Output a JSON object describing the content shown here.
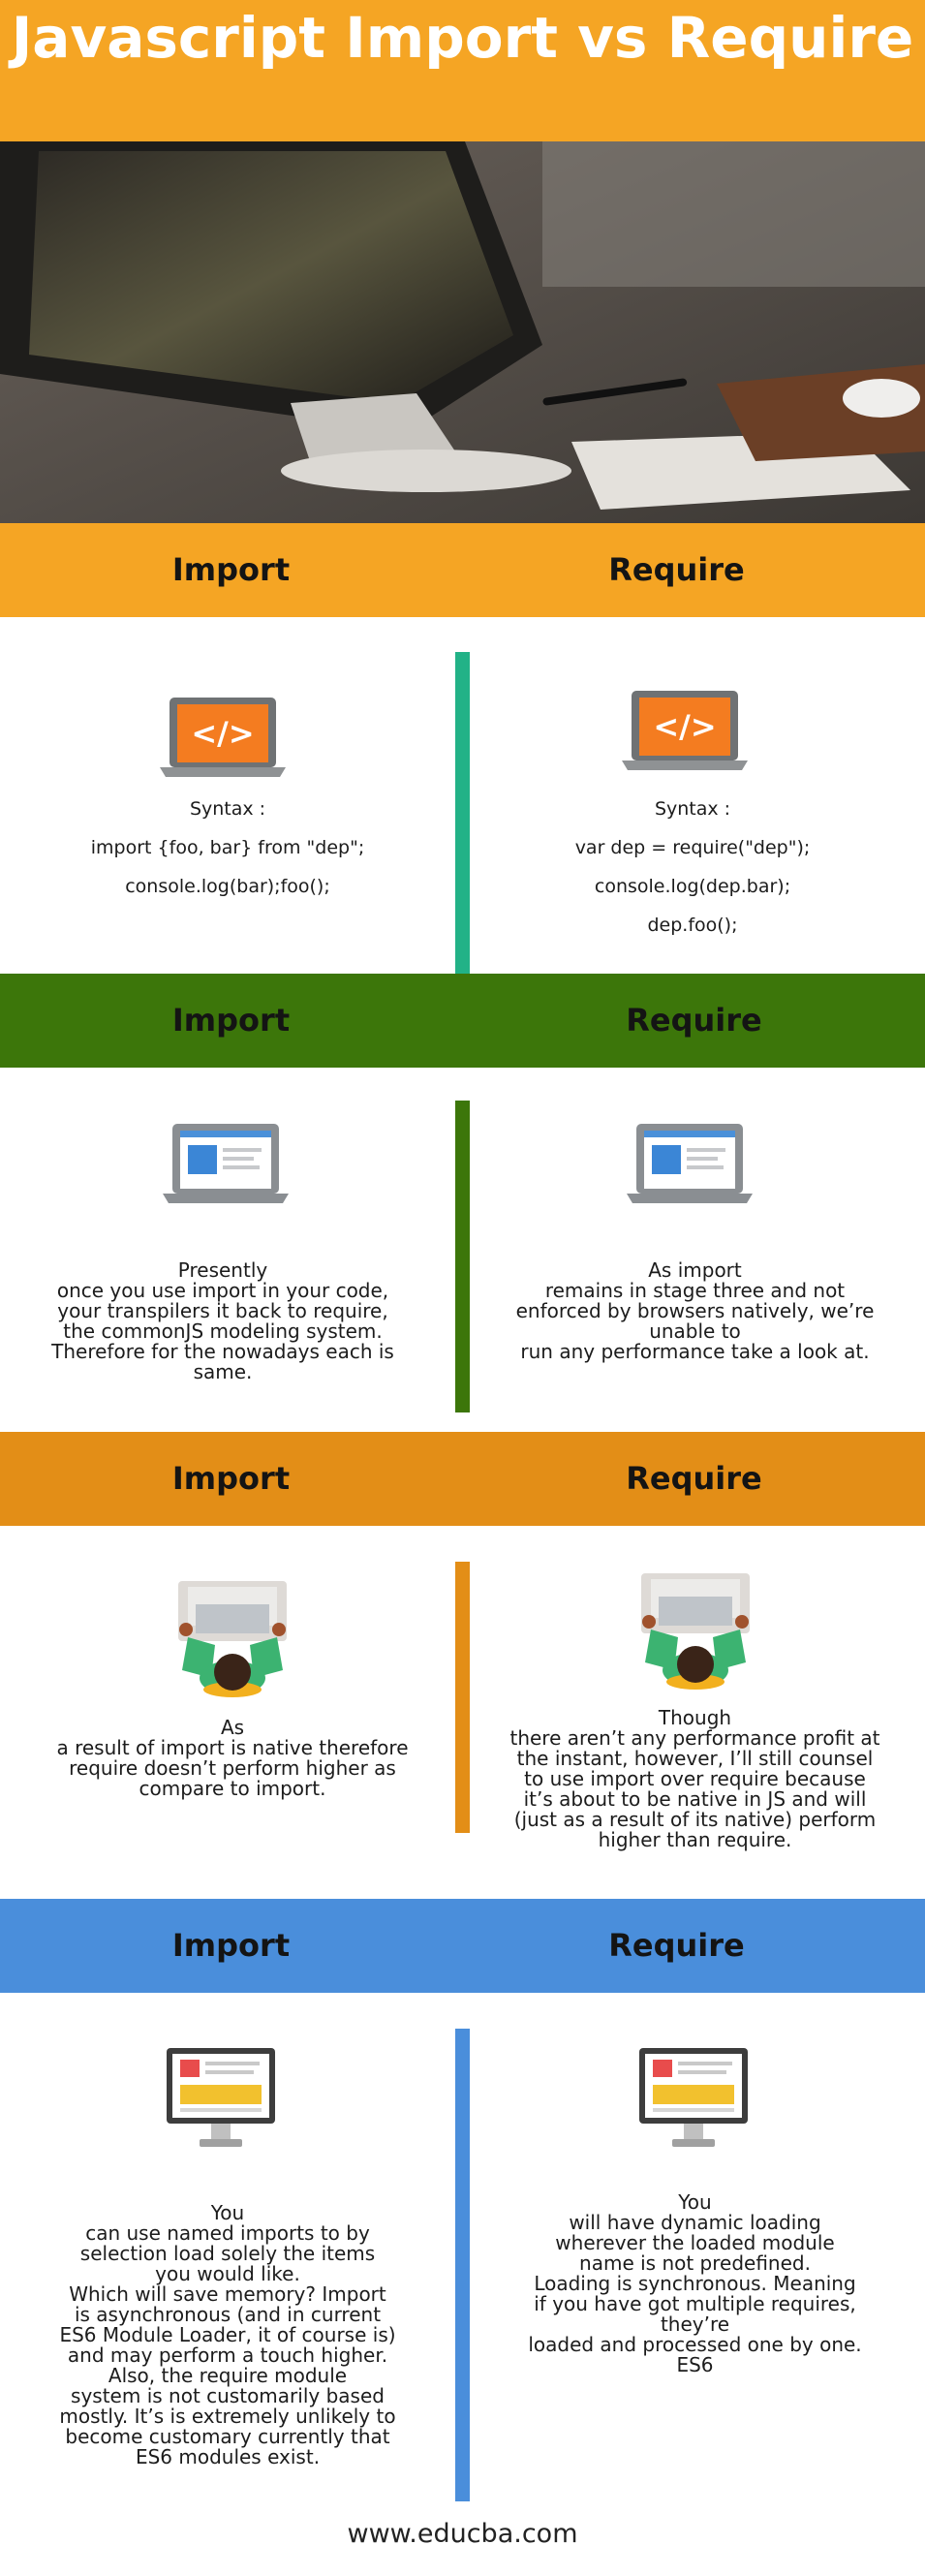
{
  "title": "Javascript Import vs Require",
  "footer": "www.educba.com",
  "colors": {
    "title_band": "#f5a524",
    "section1": "#f5a524",
    "section2": "#3c760a",
    "section3": "#e38e17",
    "section4": "#4a8edb",
    "divider1": "#22b287"
  },
  "sections": [
    {
      "left_header": "Import",
      "right_header": "Require",
      "left_lines": [
        "Syntax :",
        "import {foo, bar} from \"dep\";",
        "console.log(bar);foo();"
      ],
      "right_lines": [
        "Syntax :",
        "var dep = require(\"dep\");",
        "console.log(dep.bar);",
        "dep.foo();"
      ]
    },
    {
      "left_header": "Import",
      "right_header": "Require",
      "left_lines": [
        "Presently",
        "once you use import in your code,",
        "your transpilers it back to require,",
        "the commonJS modeling system.",
        "Therefore for the nowadays each is",
        "same."
      ],
      "right_lines": [
        "As import",
        "remains in stage three and not",
        "enforced by browsers natively, we’re",
        "unable to",
        "run any performance take a look at."
      ]
    },
    {
      "left_header": "Import",
      "right_header": "Require",
      "left_lines": [
        "As",
        "a result of import is native therefore",
        "require doesn’t perform higher as",
        "compare to import."
      ],
      "right_lines": [
        "Though",
        "there aren’t any performance profit at",
        "the instant, however, I’ll still counsel",
        "to use import over require because",
        "it’s about to be native in JS and will",
        "(just as a result of its native) perform",
        "higher than require."
      ]
    },
    {
      "left_header": "Import",
      "right_header": "Require",
      "left_lines": [
        "You",
        "can use named imports to by",
        "selection load solely the items",
        "you would like.",
        "Which will save memory? Import",
        "is asynchronous (and in current",
        "ES6 Module Loader, it of course is)",
        "and may perform a touch higher.",
        "Also, the require module",
        "system is not customarily based",
        "mostly. It’s is extremely unlikely to",
        "become customary currently that",
        "ES6 modules exist."
      ],
      "right_lines": [
        "You",
        "will have dynamic loading",
        "wherever the loaded module",
        "name is not predefined.",
        "Loading is synchronous. Meaning",
        "if you have got multiple requires,",
        "they’re",
        "loaded and processed one by one.",
        "ES6"
      ]
    }
  ]
}
